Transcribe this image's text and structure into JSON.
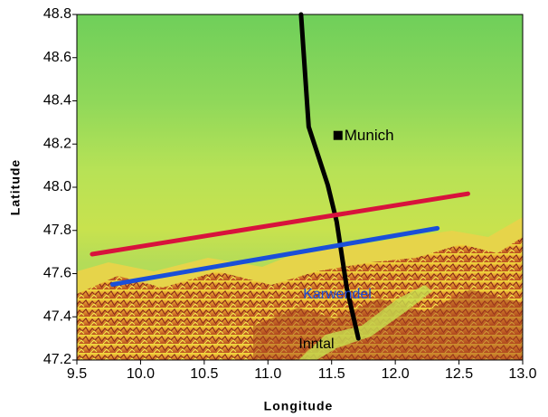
{
  "chart_data": {
    "type": "line",
    "x_label": "Longitude",
    "y_label": "Latitude",
    "xlim": [
      9.5,
      13.0
    ],
    "ylim": [
      47.2,
      48.8
    ],
    "xticks": [
      9.5,
      {
        "value": 10,
        "label": "10.0"
      },
      10.5,
      {
        "value": 11,
        "label": "11.0"
      },
      11.5,
      {
        "value": 12,
        "label": "12.0"
      },
      12.5,
      {
        "value": 13,
        "label": "13.0"
      }
    ],
    "yticks": [
      47.2,
      47.4,
      47.6,
      47.8,
      {
        "value": 48,
        "label": "48.0"
      },
      48.2,
      48.4,
      48.6,
      48.8
    ],
    "series": [
      {
        "color": "#000000",
        "x": [
          11.26,
          11.32,
          11.47,
          11.54,
          11.62,
          11.71
        ],
        "y": [
          48.8,
          48.28,
          48.01,
          47.84,
          47.53,
          47.3
        ]
      },
      {
        "color": "#d8123c",
        "x": [
          9.62,
          12.57
        ],
        "y": [
          47.69,
          47.97
        ]
      },
      {
        "color": "#1a4fd8",
        "x": [
          9.78,
          12.33
        ],
        "y": [
          47.55,
          47.81
        ]
      }
    ],
    "markers": [
      {
        "label": "Munich",
        "x": 11.55,
        "y": 48.24
      }
    ],
    "annotations": [
      {
        "text": "Karwendel",
        "color": "#1a4fd8"
      },
      {
        "text": "Inntal",
        "color": "#000000"
      }
    ]
  }
}
